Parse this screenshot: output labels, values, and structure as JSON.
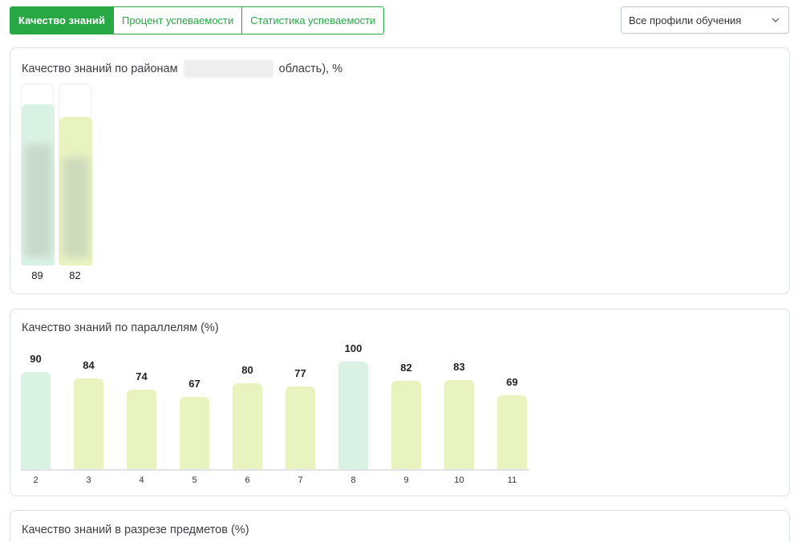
{
  "tabs": [
    {
      "label": "Качество знаний",
      "active": true
    },
    {
      "label": "Процент успеваемости",
      "active": false
    },
    {
      "label": "Статистика успеваемости",
      "active": false
    }
  ],
  "profile_select": {
    "value": "Все профили обучения",
    "icon": "chevron-down-icon"
  },
  "colors": {
    "accent": "#28a745",
    "bar_mint": "#d9f2e4",
    "bar_lime": "#e9f3c0"
  },
  "districts_card": {
    "title_prefix": "Качество знаний по районам",
    "title_suffix": "область), %"
  },
  "parallels_card": {
    "title": "Качество знаний по параллелям (%)"
  },
  "subjects_card": {
    "title": "Качество знаний в разрезе предметов (%)"
  },
  "chart_data": [
    {
      "type": "bar",
      "title": "Качество знаний по районам … область), %",
      "categories": [
        "",
        ""
      ],
      "values": [
        89,
        82
      ],
      "colors": [
        "#d9f2e4",
        "#e9f3c0"
      ],
      "ylim": [
        0,
        100
      ]
    },
    {
      "type": "bar",
      "title": "Качество знаний по параллелям (%)",
      "categories": [
        "2",
        "3",
        "4",
        "5",
        "6",
        "7",
        "8",
        "9",
        "10",
        "11"
      ],
      "values": [
        90,
        84,
        74,
        67,
        80,
        77,
        100,
        82,
        83,
        69
      ],
      "colors": [
        "#d9f2e4",
        "#e9f3c0",
        "#e9f3c0",
        "#e9f3c0",
        "#e9f3c0",
        "#e9f3c0",
        "#d9f2e4",
        "#e9f3c0",
        "#e9f3c0",
        "#e9f3c0"
      ],
      "ylim": [
        0,
        100
      ]
    }
  ]
}
